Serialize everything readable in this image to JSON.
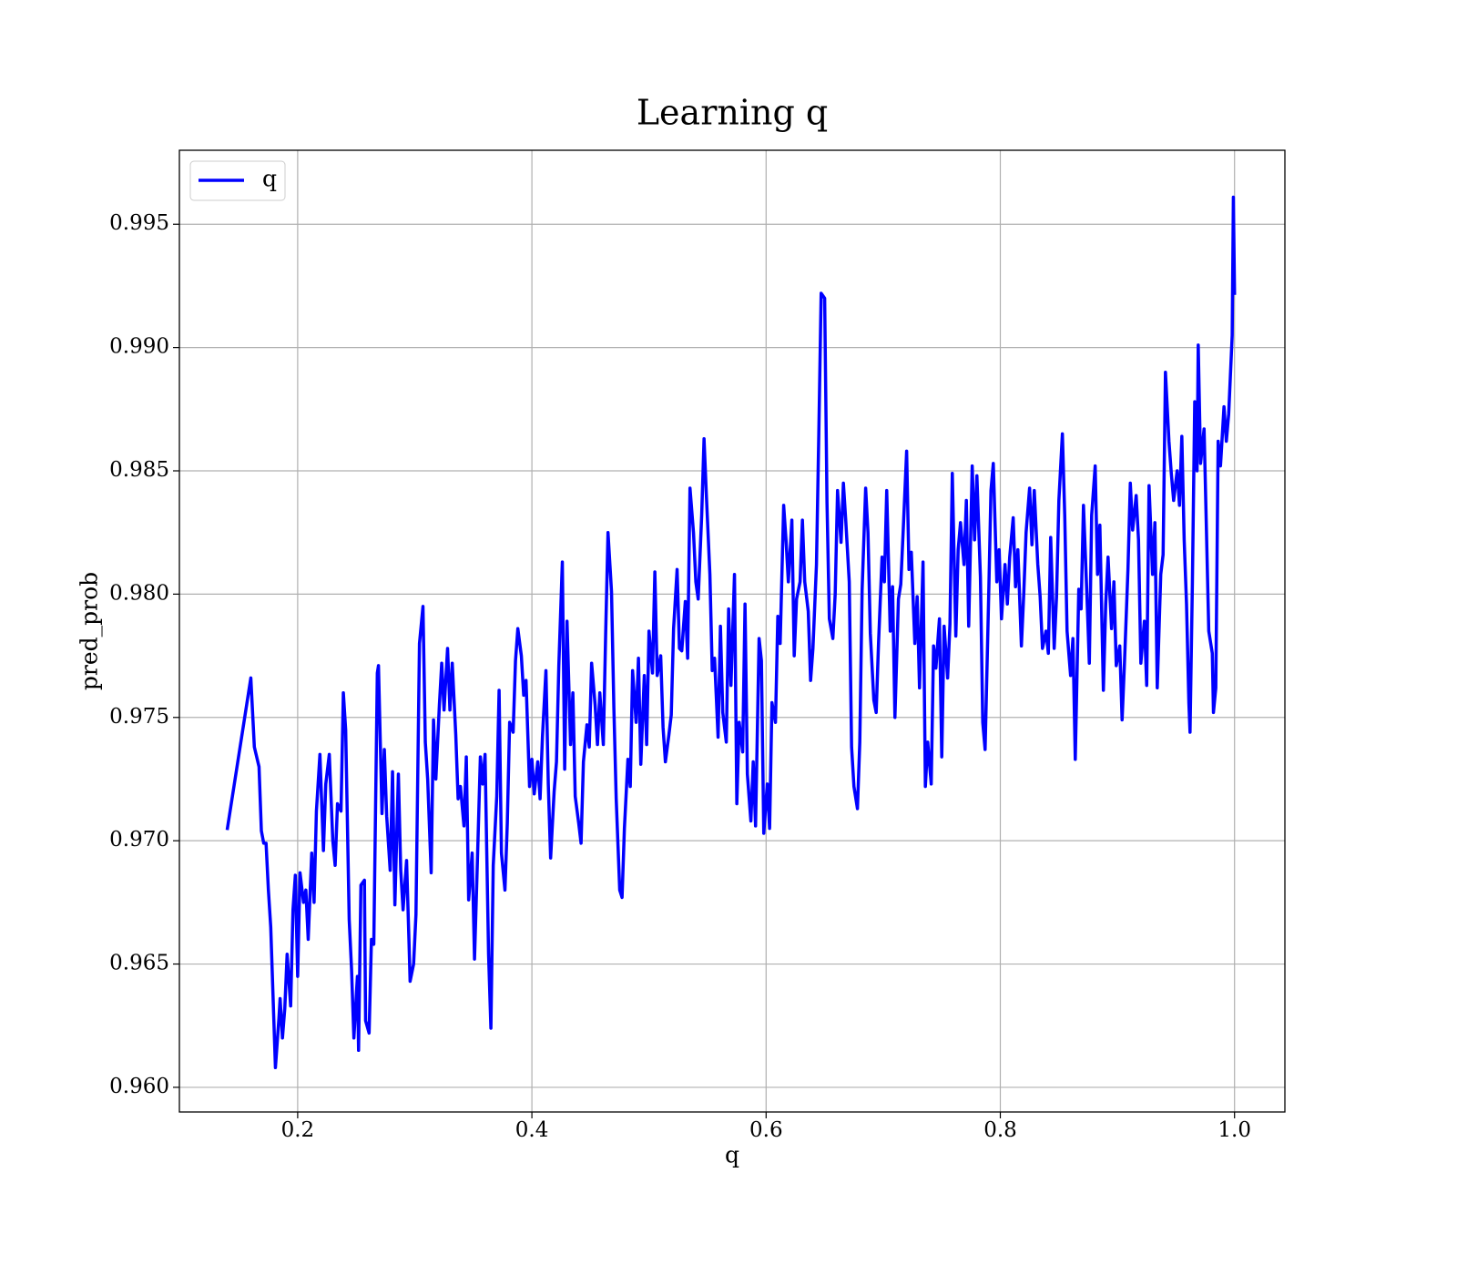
{
  "chart_data": {
    "type": "line",
    "title": "Learning q",
    "x_label": "q",
    "y_label": "pred_prob",
    "xlim": [
      0.099,
      1.043
    ],
    "ylim": [
      0.959,
      0.998
    ],
    "xticks": [
      0.2,
      0.4,
      0.6,
      0.8,
      {
        "value": 1,
        "label": "1.0"
      }
    ],
    "yticks": [
      {
        "value": 0.96,
        "label": "0.960"
      },
      0.965,
      {
        "value": 0.97,
        "label": "0.970"
      },
      0.975,
      {
        "value": 0.98,
        "label": "0.980"
      },
      0.985,
      {
        "value": 0.99,
        "label": "0.990"
      },
      0.995
    ],
    "grid": true,
    "legend_position": "upper-left",
    "x": [
      0.14,
      0.16,
      0.163,
      0.167,
      0.169,
      0.171,
      0.173,
      0.175,
      0.177,
      0.181,
      0.184,
      0.185,
      0.187,
      0.189,
      0.191,
      0.194,
      0.196,
      0.198,
      0.2,
      0.202,
      0.205,
      0.207,
      0.209,
      0.212,
      0.214,
      0.216,
      0.219,
      0.222,
      0.224,
      0.227,
      0.23,
      0.232,
      0.234,
      0.237,
      0.239,
      0.241,
      0.244,
      0.246,
      0.248,
      0.251,
      0.252,
      0.254,
      0.257,
      0.258,
      0.261,
      0.263,
      0.265,
      0.268,
      0.269,
      0.272,
      0.274,
      0.276,
      0.279,
      0.281,
      0.283,
      0.286,
      0.288,
      0.29,
      0.293,
      0.295,
      0.296,
      0.299,
      0.301,
      0.304,
      0.307,
      0.309,
      0.311,
      0.314,
      0.316,
      0.318,
      0.321,
      0.323,
      0.325,
      0.328,
      0.33,
      0.332,
      0.335,
      0.337,
      0.339,
      0.342,
      0.344,
      0.346,
      0.349,
      0.351,
      0.353,
      0.356,
      0.358,
      0.36,
      0.363,
      0.365,
      0.367,
      0.37,
      0.372,
      0.374,
      0.377,
      0.379,
      0.381,
      0.384,
      0.386,
      0.388,
      0.391,
      0.393,
      0.395,
      0.398,
      0.4,
      0.402,
      0.405,
      0.407,
      0.409,
      0.412,
      0.414,
      0.416,
      0.419,
      0.421,
      0.423,
      0.426,
      0.428,
      0.43,
      0.433,
      0.435,
      0.437,
      0.44,
      0.442,
      0.444,
      0.447,
      0.449,
      0.451,
      0.454,
      0.456,
      0.458,
      0.461,
      0.463,
      0.465,
      0.468,
      0.47,
      0.472,
      0.475,
      0.477,
      0.479,
      0.482,
      0.484,
      0.486,
      0.489,
      0.491,
      0.493,
      0.496,
      0.498,
      0.5,
      0.503,
      0.505,
      0.507,
      0.51,
      0.512,
      0.514,
      0.517,
      0.519,
      0.521,
      0.524,
      0.526,
      0.528,
      0.531,
      0.533,
      0.535,
      0.538,
      0.54,
      0.542,
      0.545,
      0.547,
      0.549,
      0.552,
      0.554,
      0.556,
      0.559,
      0.561,
      0.563,
      0.566,
      0.568,
      0.57,
      0.573,
      0.575,
      0.577,
      0.58,
      0.582,
      0.584,
      0.587,
      0.589,
      0.591,
      0.594,
      0.596,
      0.598,
      0.601,
      0.603,
      0.605,
      0.608,
      0.61,
      0.612,
      0.615,
      0.617,
      0.619,
      0.622,
      0.624,
      0.626,
      0.629,
      0.631,
      0.633,
      0.636,
      0.638,
      0.64,
      0.643,
      0.645,
      0.647,
      0.65,
      0.652,
      0.654,
      0.657,
      0.659,
      0.661,
      0.664,
      0.666,
      0.668,
      0.671,
      0.673,
      0.675,
      0.678,
      0.68,
      0.682,
      0.685,
      0.687,
      0.689,
      0.692,
      0.694,
      0.696,
      0.699,
      0.701,
      0.703,
      0.706,
      0.708,
      0.71,
      0.713,
      0.715,
      0.717,
      0.72,
      0.722,
      0.724,
      0.727,
      0.729,
      0.731,
      0.734,
      0.736,
      0.738,
      0.741,
      0.743,
      0.745,
      0.748,
      0.75,
      0.752,
      0.755,
      0.757,
      0.759,
      0.762,
      0.764,
      0.766,
      0.769,
      0.771,
      0.773,
      0.776,
      0.778,
      0.78,
      0.783,
      0.785,
      0.787,
      0.79,
      0.792,
      0.794,
      0.797,
      0.799,
      0.801,
      0.804,
      0.806,
      0.808,
      0.811,
      0.813,
      0.815,
      0.818,
      0.82,
      0.822,
      0.825,
      0.827,
      0.829,
      0.832,
      0.834,
      0.836,
      0.839,
      0.841,
      0.843,
      0.846,
      0.848,
      0.85,
      0.853,
      0.855,
      0.857,
      0.86,
      0.862,
      0.864,
      0.867,
      0.869,
      0.871,
      0.874,
      0.876,
      0.878,
      0.881,
      0.883,
      0.885,
      0.888,
      0.89,
      0.892,
      0.895,
      0.897,
      0.899,
      0.902,
      0.904,
      0.906,
      0.909,
      0.911,
      0.913,
      0.916,
      0.918,
      0.92,
      0.923,
      0.925,
      0.927,
      0.93,
      0.932,
      0.934,
      0.937,
      0.939,
      0.941,
      0.944,
      0.946,
      0.948,
      0.951,
      0.953,
      0.955,
      0.957,
      0.959,
      0.961,
      0.962,
      0.964,
      0.966,
      0.968,
      0.969,
      0.971,
      0.974,
      0.976,
      0.978,
      0.981,
      0.982,
      0.984,
      0.986,
      0.988,
      0.991,
      0.993,
      0.995,
      0.998,
      0.999,
      1.0
    ],
    "series": [
      {
        "name": "q",
        "color": "#0000ff",
        "values": [
          0.9705,
          0.9766,
          0.9738,
          0.973,
          0.9704,
          0.9699,
          0.9699,
          0.968,
          0.9665,
          0.9608,
          0.9628,
          0.9636,
          0.962,
          0.9632,
          0.9654,
          0.9633,
          0.9672,
          0.9686,
          0.9645,
          0.9687,
          0.9675,
          0.968,
          0.966,
          0.9695,
          0.9675,
          0.9712,
          0.9735,
          0.9696,
          0.9723,
          0.9735,
          0.97,
          0.969,
          0.9715,
          0.9712,
          0.976,
          0.9745,
          0.9668,
          0.9648,
          0.962,
          0.9645,
          0.9615,
          0.9682,
          0.9684,
          0.9627,
          0.9622,
          0.966,
          0.9658,
          0.9768,
          0.9771,
          0.9711,
          0.9737,
          0.971,
          0.9688,
          0.9728,
          0.9674,
          0.9727,
          0.9688,
          0.9672,
          0.9692,
          0.966,
          0.9643,
          0.965,
          0.967,
          0.978,
          0.9795,
          0.974,
          0.9725,
          0.9687,
          0.9749,
          0.9725,
          0.9755,
          0.9772,
          0.9753,
          0.9778,
          0.9753,
          0.9772,
          0.9743,
          0.9717,
          0.9722,
          0.9706,
          0.9734,
          0.9676,
          0.9695,
          0.9652,
          0.9684,
          0.9734,
          0.9723,
          0.9735,
          0.9654,
          0.9624,
          0.969,
          0.9718,
          0.9761,
          0.9695,
          0.968,
          0.9707,
          0.9748,
          0.9744,
          0.9773,
          0.9786,
          0.9775,
          0.9759,
          0.9765,
          0.9722,
          0.9733,
          0.9719,
          0.9732,
          0.9717,
          0.9742,
          0.9769,
          0.9723,
          0.9693,
          0.972,
          0.9732,
          0.9771,
          0.9813,
          0.9729,
          0.9789,
          0.9739,
          0.976,
          0.9718,
          0.9707,
          0.9699,
          0.9732,
          0.9747,
          0.9738,
          0.9772,
          0.9755,
          0.9739,
          0.976,
          0.9739,
          0.9784,
          0.9825,
          0.9801,
          0.9754,
          0.9717,
          0.968,
          0.9677,
          0.9705,
          0.9733,
          0.9722,
          0.9769,
          0.9748,
          0.9774,
          0.9731,
          0.9767,
          0.9739,
          0.9785,
          0.9768,
          0.9809,
          0.9767,
          0.9775,
          0.9746,
          0.9732,
          0.9743,
          0.9751,
          0.9786,
          0.981,
          0.9778,
          0.9777,
          0.9797,
          0.9774,
          0.9843,
          0.9825,
          0.9805,
          0.9798,
          0.9832,
          0.9863,
          0.984,
          0.9808,
          0.9769,
          0.9774,
          0.9742,
          0.9787,
          0.9752,
          0.974,
          0.9794,
          0.9763,
          0.9808,
          0.9715,
          0.9748,
          0.9736,
          0.9796,
          0.9727,
          0.9708,
          0.9732,
          0.9706,
          0.9782,
          0.9773,
          0.9703,
          0.9723,
          0.9705,
          0.9756,
          0.9748,
          0.9791,
          0.978,
          0.9836,
          0.9822,
          0.9805,
          0.983,
          0.9775,
          0.9798,
          0.9805,
          0.983,
          0.9805,
          0.9793,
          0.9765,
          0.9778,
          0.9812,
          0.9865,
          0.9922,
          0.992,
          0.9837,
          0.979,
          0.9782,
          0.98,
          0.9842,
          0.9821,
          0.9845,
          0.983,
          0.9805,
          0.9738,
          0.9722,
          0.9713,
          0.974,
          0.9802,
          0.9843,
          0.9825,
          0.9784,
          0.9757,
          0.9752,
          0.978,
          0.9815,
          0.9805,
          0.9842,
          0.9785,
          0.9803,
          0.975,
          0.9798,
          0.9804,
          0.9825,
          0.9858,
          0.981,
          0.9817,
          0.978,
          0.9799,
          0.9762,
          0.9813,
          0.9722,
          0.974,
          0.9723,
          0.9779,
          0.977,
          0.979,
          0.9734,
          0.9787,
          0.9766,
          0.9788,
          0.9849,
          0.9783,
          0.9818,
          0.9829,
          0.9812,
          0.9838,
          0.9787,
          0.9852,
          0.9822,
          0.9848,
          0.9807,
          0.9748,
          0.9737,
          0.9798,
          0.9842,
          0.9853,
          0.9805,
          0.9818,
          0.979,
          0.9812,
          0.9796,
          0.9815,
          0.9831,
          0.9803,
          0.9818,
          0.9779,
          0.98,
          0.9825,
          0.9843,
          0.982,
          0.9842,
          0.9812,
          0.9799,
          0.9778,
          0.9785,
          0.9776,
          0.9823,
          0.9778,
          0.9799,
          0.9838,
          0.9865,
          0.9832,
          0.9785,
          0.9767,
          0.9782,
          0.9733,
          0.9802,
          0.9794,
          0.9836,
          0.9799,
          0.9772,
          0.9832,
          0.9852,
          0.9808,
          0.9828,
          0.9761,
          0.9796,
          0.9815,
          0.9786,
          0.9805,
          0.9771,
          0.9779,
          0.9749,
          0.9772,
          0.981,
          0.9845,
          0.9826,
          0.984,
          0.9822,
          0.9772,
          0.9789,
          0.9763,
          0.9844,
          0.9808,
          0.9829,
          0.9762,
          0.9808,
          0.9816,
          0.989,
          0.9862,
          0.9849,
          0.9838,
          0.985,
          0.9836,
          0.9864,
          0.9822,
          0.9796,
          0.9756,
          0.9744,
          0.9804,
          0.9878,
          0.985,
          0.9901,
          0.9853,
          0.9867,
          0.9826,
          0.9785,
          0.9776,
          0.9752,
          0.9762,
          0.9862,
          0.9852,
          0.9876,
          0.9862,
          0.9873,
          0.9905,
          0.9961,
          0.9922
        ]
      }
    ]
  }
}
